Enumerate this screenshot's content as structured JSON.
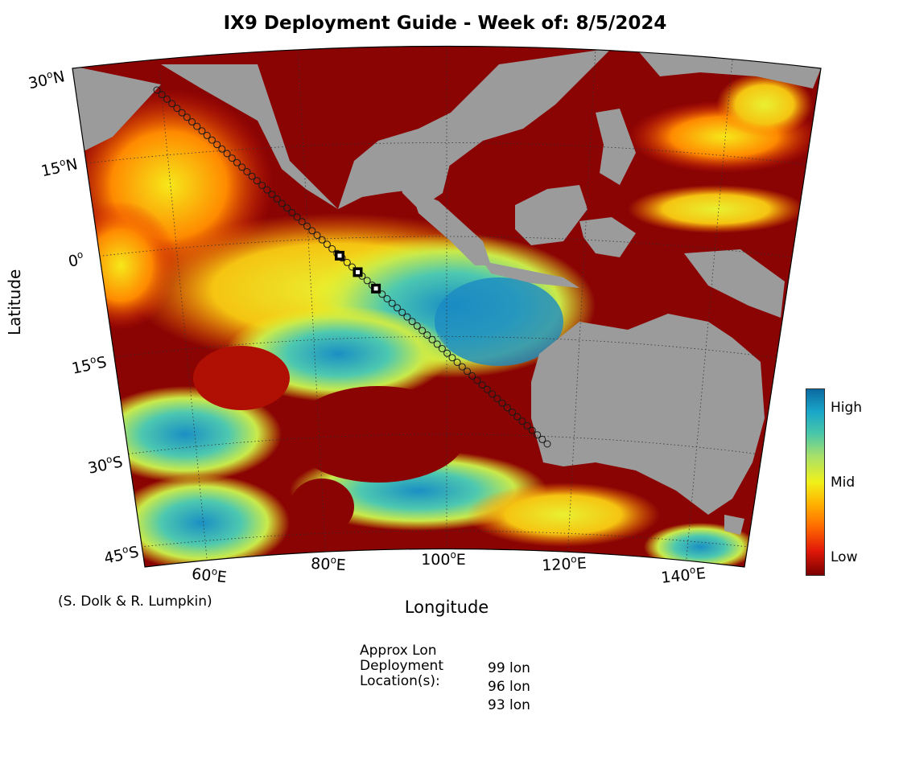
{
  "title": "IX9 Deployment Guide - Week of: 8/5/2024",
  "axes": {
    "ylabel": "Latitude",
    "xlabel": "Longitude",
    "lat_ticks": [
      {
        "value": "30",
        "hemi": "N"
      },
      {
        "value": "15",
        "hemi": "N"
      },
      {
        "value": "0",
        "hemi": ""
      },
      {
        "value": "15",
        "hemi": "S"
      },
      {
        "value": "30",
        "hemi": "S"
      },
      {
        "value": "45",
        "hemi": "S"
      }
    ],
    "lon_ticks": [
      {
        "value": "60",
        "hemi": "E"
      },
      {
        "value": "80",
        "hemi": "E"
      },
      {
        "value": "100",
        "hemi": "E"
      },
      {
        "value": "120",
        "hemi": "E"
      },
      {
        "value": "140",
        "hemi": "E"
      }
    ]
  },
  "credit": "(S. Dolk & R. Lumpkin)",
  "colorbar": {
    "high": "High",
    "mid": "Mid",
    "low": "Low"
  },
  "deployment": {
    "label_line1": "Approx Lon",
    "label_line2": "Deployment",
    "label_line3": "Location(s):",
    "values": [
      "99 lon",
      "96 lon",
      "93 lon"
    ]
  },
  "map": {
    "projection": "conic",
    "lon_range": [
      50,
      150
    ],
    "lat_range": [
      -45,
      30
    ],
    "land_color": "#9b9b9b",
    "transect": "IX9",
    "deployment_longitudes": [
      99,
      96,
      93
    ]
  }
}
